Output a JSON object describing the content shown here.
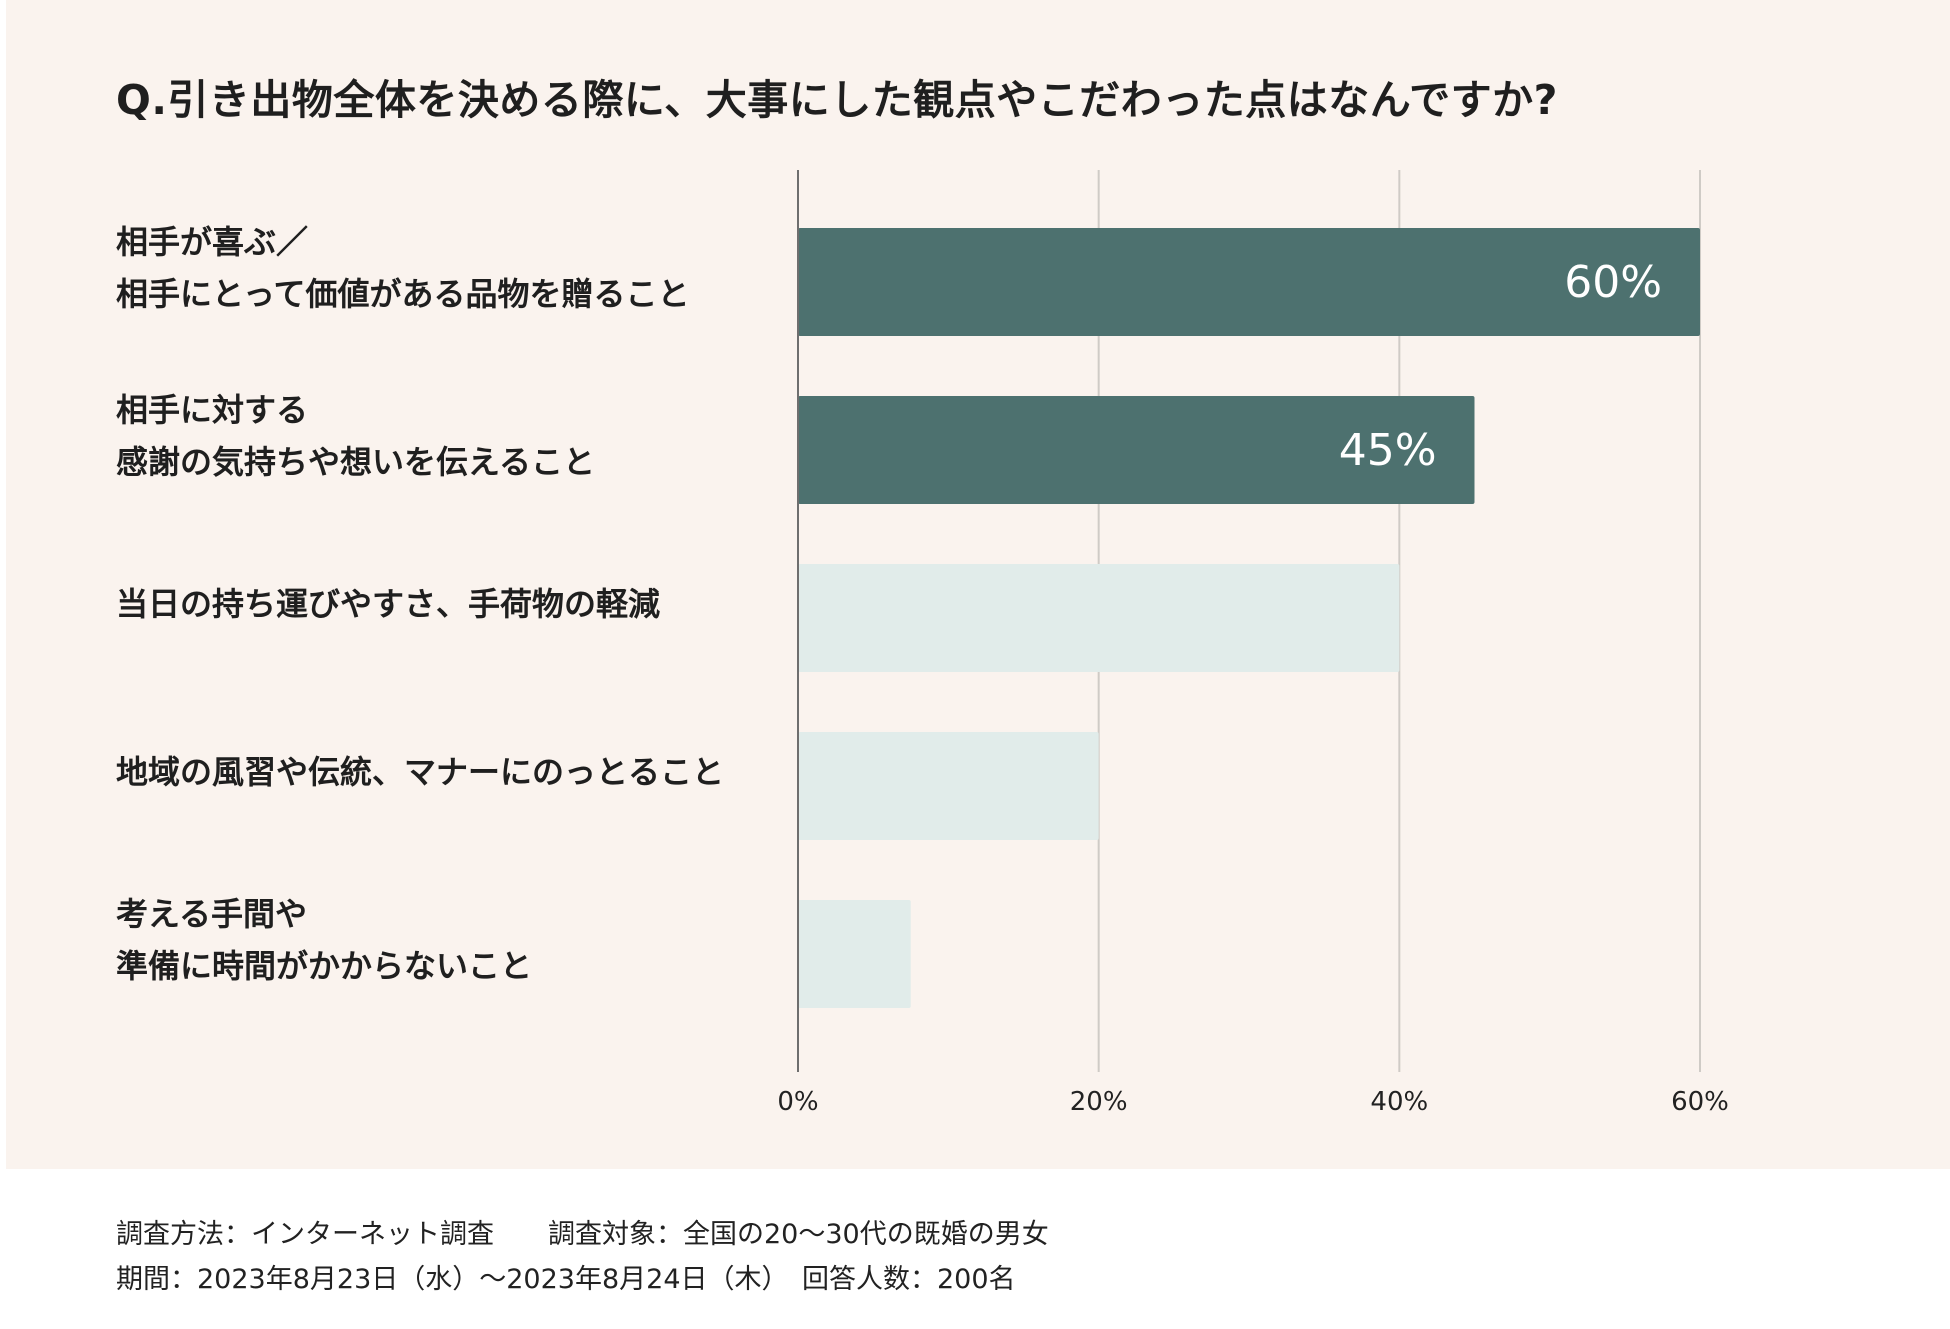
{
  "chart_data": {
    "type": "bar",
    "orientation": "horizontal",
    "title": "Q.引き出物全体を決める際に、大事にした観点やこだわった点はなんですか?",
    "categories": [
      [
        "相手が喜ぶ／",
        "相手にとって価値がある品物を贈ること"
      ],
      [
        "相手に対する",
        "感謝の気持ちや想いを伝えること"
      ],
      [
        "当日の持ち運びやすさ、手荷物の軽減"
      ],
      [
        "地域の風習や伝統、マナーにのっとること"
      ],
      [
        "考える手間や",
        "準備に時間がかからないこと"
      ]
    ],
    "values": [
      60,
      45,
      40,
      20,
      7.5
    ],
    "data_labels": [
      "60%",
      "45%",
      "",
      "",
      ""
    ],
    "xlim": [
      0,
      60
    ],
    "ticks": [
      0,
      20,
      40,
      60
    ],
    "tick_labels": [
      "0%",
      "20%",
      "40%",
      "60%"
    ],
    "grid": true,
    "colors": {
      "highlight": "#4d716f",
      "muted": "#e1ecea",
      "background": "#faf3ee",
      "axis": "#6e6e6e",
      "grid": "#cfcbc6"
    },
    "highlighted": [
      true,
      true,
      false,
      false,
      false
    ]
  },
  "footer": {
    "line1": "調査方法：インターネット調査　　調査対象：全国の20～30代の既婚の男女",
    "line2": "期間：2023年8月23日（水）～2023年8月24日（木）　回答人数：200名"
  }
}
